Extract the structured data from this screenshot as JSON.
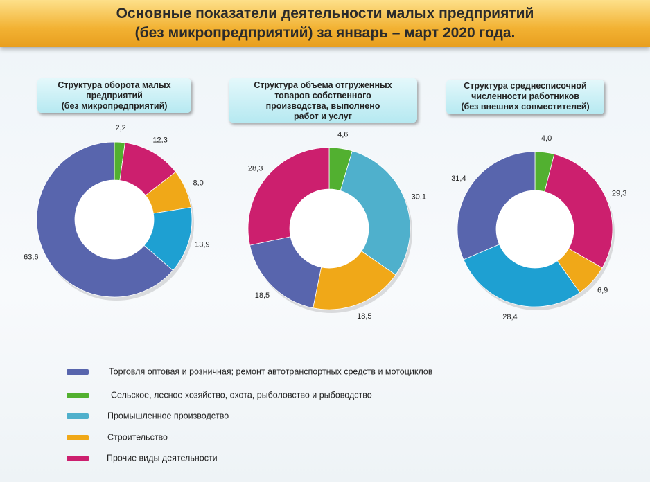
{
  "title": "Основные показатели деятельности малых предприятий\n(без микропредприятий) за январь – март 2020 года.",
  "legend": {
    "items": [
      "Торговля оптовая и розничная; ремонт автотранспортных средств и мотоциклов",
      "Сельское, лесное хозяйство, охота, рыболовство  и рыбоводство",
      "Промышленное  производство",
      "Строительство",
      "Прочие виды деятельности"
    ],
    "colors": [
      "#5865ad",
      "#52b030",
      "#4fb0cc",
      "#f0a818",
      "#cc1f6e"
    ]
  },
  "chart_data": [
    {
      "type": "donut",
      "title": "Структура оборота малых\nпредприятий\n(без микропредприятий)",
      "values": [
        2.2,
        12.3,
        8.0,
        13.9,
        63.6
      ],
      "value_labels": [
        "2,2",
        "12,3",
        "8,0",
        "13,9",
        "63,6"
      ],
      "colors": [
        "#52b030",
        "#cc1f6e",
        "#f0a818",
        "#1ea0d2",
        "#5865ad"
      ]
    },
    {
      "type": "donut",
      "title": "Структура объема отгруженных\nтоваров собственного\nпроизводства, выполнено\nработ и услуг",
      "values": [
        4.6,
        30.1,
        18.5,
        18.5,
        28.3
      ],
      "value_labels": [
        "4,6",
        "30,1",
        "18,5",
        "18,5",
        "28,3"
      ],
      "colors": [
        "#52b030",
        "#4fb0cc",
        "#f0a818",
        "#5865ad",
        "#cc1f6e"
      ]
    },
    {
      "type": "donut",
      "title": "Структура среднесписочной\nчисленности работников\n(без внешних совместителей)",
      "values": [
        4.0,
        29.3,
        6.9,
        28.4,
        31.4
      ],
      "value_labels": [
        "4,0",
        "29,3",
        "6,9",
        "28,4",
        "31,4"
      ],
      "colors": [
        "#52b030",
        "#cc1f6e",
        "#f0a818",
        "#1ea0d2",
        "#5865ad"
      ]
    }
  ]
}
